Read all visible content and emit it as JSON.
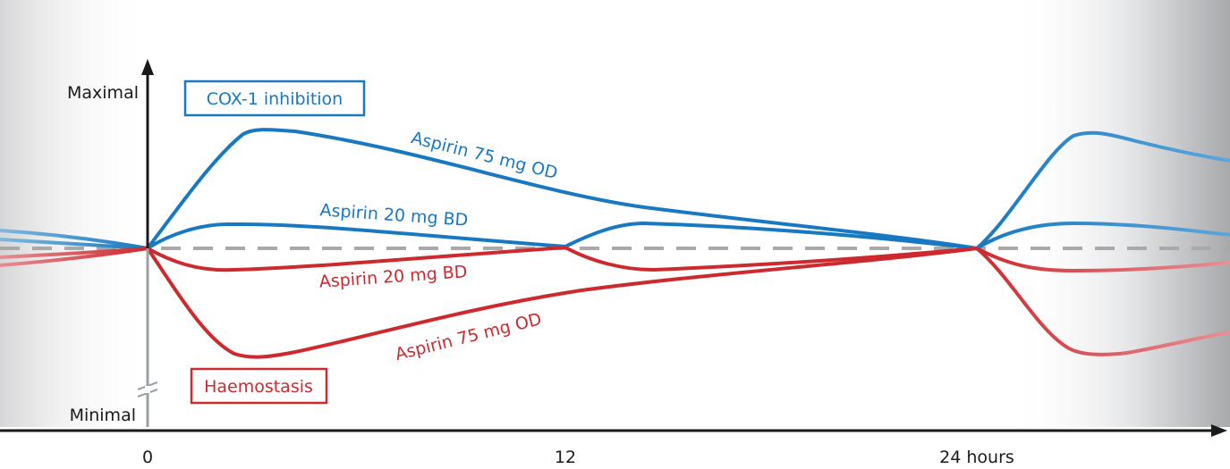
{
  "axis": {
    "y_top_label": "Maximal",
    "y_bottom_label": "Minimal",
    "x_ticks": [
      "0",
      "12",
      "24 hours"
    ]
  },
  "legend": {
    "cox_label": "COX-1 inhibition",
    "haemostasis_label": "Haemostasis"
  },
  "curves": {
    "cox_75": "Aspirin 75 mg OD",
    "cox_20": "Aspirin 20 mg BD",
    "haem_20": "Aspirin 20 mg BD",
    "haem_75": "Aspirin 75 mg OD"
  },
  "colors": {
    "cox": "#1878c0",
    "haemostasis": "#cc2a2e",
    "baseline": "#a9a9a9",
    "axis": "#1a1a1a"
  }
}
